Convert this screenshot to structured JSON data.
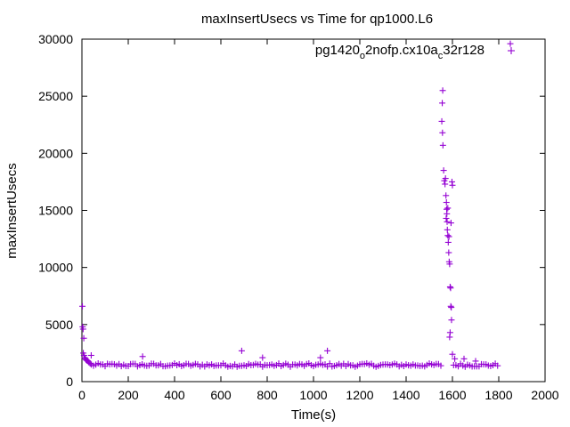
{
  "chart_data": {
    "type": "scatter",
    "title": "maxInsertUsecs vs Time for qp1000.L6",
    "xlabel": "Time(s)",
    "ylabel": "maxInsertUsecs",
    "xlim": [
      0,
      2000
    ],
    "ylim": [
      0,
      30000
    ],
    "xticks": [
      "0",
      "200",
      "400",
      "600",
      "800",
      "1000",
      "1200",
      "1400",
      "1600",
      "1800",
      "2000"
    ],
    "yticks": [
      "0",
      "5000",
      "10000",
      "15000",
      "20000",
      "25000",
      "30000"
    ],
    "legend_position": "top-right",
    "marker_color": "#9400d3",
    "series": [
      {
        "name_parts": [
          "pg1420",
          "o",
          "2nofp.cx10a",
          "c",
          "32r128"
        ],
        "baseline": [
          {
            "x_start": 40,
            "x_end": 1550,
            "step": 10,
            "y_low": 1300,
            "y_high": 1600
          },
          {
            "x_start": 1605,
            "x_end": 1800,
            "step": 10,
            "y_low": 1300,
            "y_high": 1600
          }
        ],
        "points": [
          [
            2,
            6600
          ],
          [
            3,
            4800
          ],
          [
            5,
            4600
          ],
          [
            8,
            3800
          ],
          [
            6,
            2500
          ],
          [
            9,
            2300
          ],
          [
            12,
            2100
          ],
          [
            15,
            2000
          ],
          [
            18,
            1900
          ],
          [
            22,
            1850
          ],
          [
            26,
            1800
          ],
          [
            30,
            1700
          ],
          [
            35,
            1600
          ],
          [
            40,
            2300
          ],
          [
            262,
            2200
          ],
          [
            690,
            2700
          ],
          [
            780,
            2100
          ],
          [
            1060,
            2700
          ],
          [
            1030,
            2100
          ],
          [
            1558,
            25500
          ],
          [
            1556,
            24400
          ],
          [
            1554,
            22800
          ],
          [
            1557,
            21800
          ],
          [
            1559,
            20700
          ],
          [
            1562,
            18500
          ],
          [
            1565,
            17600
          ],
          [
            1568,
            17300
          ],
          [
            1570,
            17800
          ],
          [
            1572,
            16300
          ],
          [
            1574,
            15700
          ],
          [
            1575,
            15100
          ],
          [
            1576,
            14700
          ],
          [
            1573,
            14300
          ],
          [
            1577,
            14000
          ],
          [
            1578,
            13300
          ],
          [
            1580,
            12800
          ],
          [
            1582,
            12200
          ],
          [
            1584,
            11300
          ],
          [
            1586,
            10500
          ],
          [
            1588,
            10300
          ],
          [
            1590,
            8300
          ],
          [
            1592,
            8200
          ],
          [
            1593,
            6600
          ],
          [
            1595,
            6500
          ],
          [
            1596,
            5400
          ],
          [
            1590,
            4300
          ],
          [
            1588,
            3900
          ],
          [
            1598,
            17500
          ],
          [
            1600,
            17200
          ],
          [
            1594,
            13900
          ],
          [
            1585,
            12700
          ],
          [
            1580,
            15200
          ],
          [
            1600,
            2400
          ],
          [
            1610,
            2000
          ],
          [
            1650,
            2000
          ],
          [
            1700,
            1800
          ],
          [
            1850,
            29600
          ]
        ]
      }
    ]
  }
}
